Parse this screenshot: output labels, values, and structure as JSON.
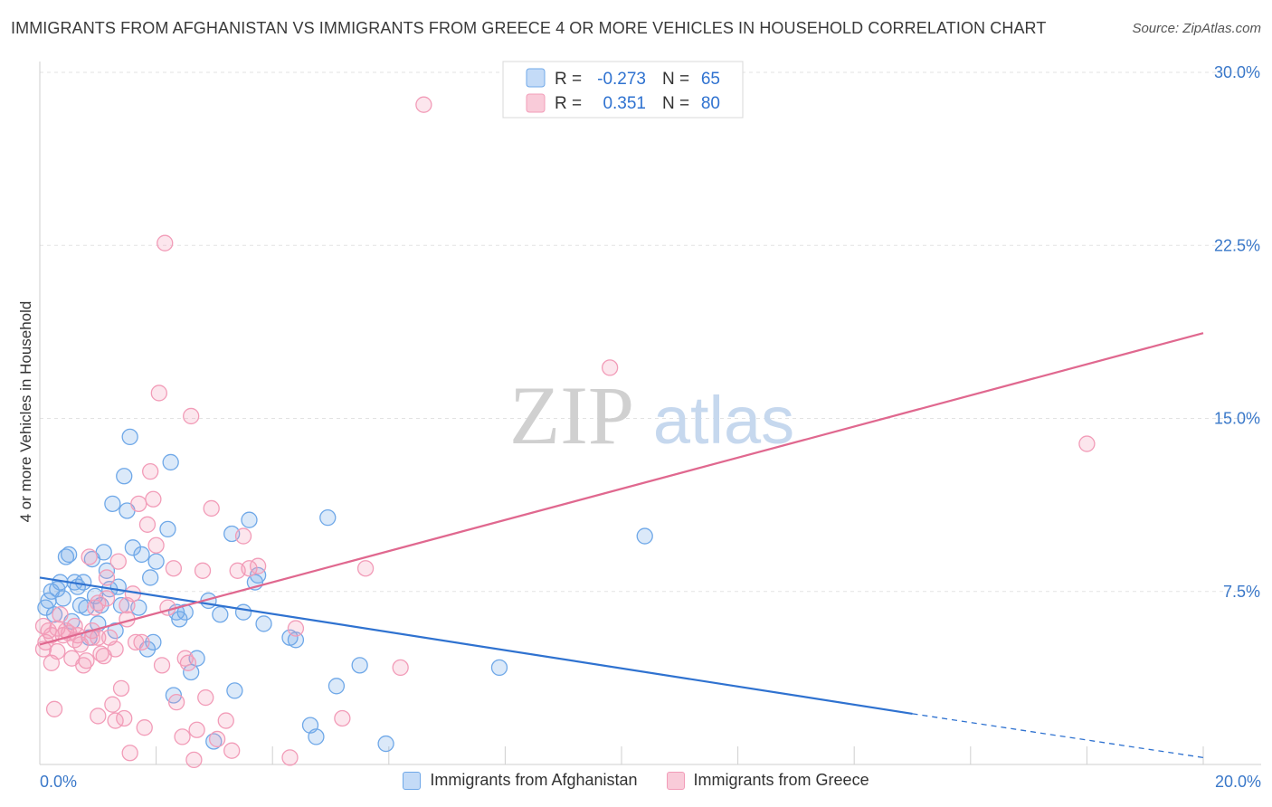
{
  "chart_data": {
    "type": "scatter",
    "title": "IMMIGRANTS FROM AFGHANISTAN VS IMMIGRANTS FROM GREECE 4 OR MORE VEHICLES IN HOUSEHOLD CORRELATION CHART",
    "source": "Source: ZipAtlas.com",
    "xlabel": "",
    "ylabel": "4 or more Vehicles in Household",
    "xlim": [
      0,
      20
    ],
    "ylim": [
      0,
      30
    ],
    "x_tick_labels": [
      "0.0%",
      "20.0%"
    ],
    "y_ticks": [
      7.5,
      15.0,
      22.5,
      30.0
    ],
    "y_tick_labels": [
      "7.5%",
      "15.0%",
      "22.5%",
      "30.0%"
    ],
    "grid": true,
    "watermark": "ZIPatlas",
    "legend_position": "top-center",
    "colors": {
      "afghanistan": "#6fa8e8",
      "greece": "#f29cb8",
      "afghanistan_line": "#2f72d0",
      "greece_line": "#e0688f",
      "axis_text": "#3a78c9"
    },
    "stats": [
      {
        "r_label": "R =",
        "r_value": "-0.273",
        "n_label": "N =",
        "n_value": "65"
      },
      {
        "r_label": "R =",
        "r_value": "0.351",
        "n_label": "N =",
        "n_value": "80"
      }
    ],
    "series": [
      {
        "name": "Immigrants from Afghanistan",
        "trend": {
          "x0": 0.0,
          "y0": 8.1,
          "x1": 15.0,
          "y1": 2.2,
          "dashed_to_x": 20.0,
          "dashed_to_y": 0.3
        },
        "points": [
          [
            0.1,
            6.8
          ],
          [
            0.15,
            7.1
          ],
          [
            0.2,
            7.5
          ],
          [
            0.25,
            6.5
          ],
          [
            0.3,
            7.6
          ],
          [
            0.35,
            7.9
          ],
          [
            0.4,
            7.2
          ],
          [
            0.45,
            9.0
          ],
          [
            0.5,
            9.1
          ],
          [
            0.55,
            6.2
          ],
          [
            0.6,
            7.9
          ],
          [
            0.65,
            7.7
          ],
          [
            0.7,
            6.9
          ],
          [
            0.75,
            7.9
          ],
          [
            0.8,
            6.8
          ],
          [
            0.85,
            5.5
          ],
          [
            0.9,
            8.9
          ],
          [
            0.95,
            7.3
          ],
          [
            1.0,
            6.1
          ],
          [
            1.05,
            6.9
          ],
          [
            1.1,
            9.2
          ],
          [
            1.15,
            8.4
          ],
          [
            1.2,
            7.6
          ],
          [
            1.25,
            11.3
          ],
          [
            1.3,
            5.8
          ],
          [
            1.35,
            7.7
          ],
          [
            1.4,
            6.9
          ],
          [
            1.45,
            12.5
          ],
          [
            1.5,
            11.0
          ],
          [
            1.55,
            14.2
          ],
          [
            1.6,
            9.4
          ],
          [
            1.7,
            6.8
          ],
          [
            1.75,
            9.1
          ],
          [
            1.85,
            5.0
          ],
          [
            1.9,
            8.1
          ],
          [
            1.95,
            5.3
          ],
          [
            2.0,
            8.8
          ],
          [
            2.2,
            10.2
          ],
          [
            2.25,
            13.1
          ],
          [
            2.3,
            3.0
          ],
          [
            2.35,
            6.6
          ],
          [
            2.4,
            6.3
          ],
          [
            2.5,
            6.6
          ],
          [
            2.6,
            4.0
          ],
          [
            2.7,
            4.6
          ],
          [
            2.9,
            7.1
          ],
          [
            3.1,
            6.5
          ],
          [
            3.3,
            10.0
          ],
          [
            3.35,
            3.2
          ],
          [
            3.5,
            6.6
          ],
          [
            3.6,
            10.6
          ],
          [
            3.7,
            7.9
          ],
          [
            3.75,
            8.2
          ],
          [
            3.85,
            6.1
          ],
          [
            4.3,
            5.5
          ],
          [
            4.4,
            5.4
          ],
          [
            4.65,
            1.7
          ],
          [
            4.75,
            1.2
          ],
          [
            4.95,
            10.7
          ],
          [
            5.1,
            3.4
          ],
          [
            5.5,
            4.3
          ],
          [
            5.95,
            0.9
          ],
          [
            7.9,
            4.2
          ],
          [
            10.4,
            9.9
          ],
          [
            2.99,
            1.0
          ]
        ]
      },
      {
        "name": "Immigrants from Greece",
        "trend": {
          "x0": 0.0,
          "y0": 5.2,
          "x1": 20.0,
          "y1": 18.7
        },
        "points": [
          [
            0.05,
            6.0
          ],
          [
            0.1,
            5.3
          ],
          [
            0.15,
            5.8
          ],
          [
            0.2,
            5.6
          ],
          [
            0.25,
            2.4
          ],
          [
            0.3,
            5.9
          ],
          [
            0.35,
            6.5
          ],
          [
            0.4,
            5.6
          ],
          [
            0.45,
            5.8
          ],
          [
            0.5,
            5.7
          ],
          [
            0.55,
            4.6
          ],
          [
            0.6,
            5.4
          ],
          [
            0.65,
            5.6
          ],
          [
            0.7,
            5.2
          ],
          [
            0.75,
            4.3
          ],
          [
            0.8,
            4.5
          ],
          [
            0.85,
            9.0
          ],
          [
            0.9,
            5.5
          ],
          [
            0.95,
            6.8
          ],
          [
            1.0,
            7.0
          ],
          [
            1.05,
            4.8
          ],
          [
            1.1,
            4.7
          ],
          [
            1.15,
            7.2
          ],
          [
            1.2,
            5.5
          ],
          [
            1.25,
            2.6
          ],
          [
            1.3,
            1.9
          ],
          [
            1.35,
            8.8
          ],
          [
            1.4,
            3.3
          ],
          [
            1.45,
            2.0
          ],
          [
            1.5,
            6.3
          ],
          [
            1.55,
            0.5
          ],
          [
            1.6,
            7.4
          ],
          [
            1.65,
            5.3
          ],
          [
            1.7,
            11.3
          ],
          [
            1.75,
            5.3
          ],
          [
            1.8,
            1.6
          ],
          [
            1.85,
            10.4
          ],
          [
            1.9,
            12.7
          ],
          [
            1.95,
            11.5
          ],
          [
            2.0,
            9.5
          ],
          [
            2.05,
            16.1
          ],
          [
            2.1,
            4.3
          ],
          [
            2.15,
            22.6
          ],
          [
            2.2,
            6.8
          ],
          [
            2.3,
            8.5
          ],
          [
            2.35,
            2.7
          ],
          [
            2.45,
            1.2
          ],
          [
            2.5,
            4.6
          ],
          [
            2.55,
            4.4
          ],
          [
            2.6,
            15.1
          ],
          [
            2.65,
            0.2
          ],
          [
            2.7,
            1.5
          ],
          [
            2.8,
            8.4
          ],
          [
            2.85,
            2.9
          ],
          [
            2.95,
            11.1
          ],
          [
            3.05,
            1.1
          ],
          [
            3.2,
            1.9
          ],
          [
            3.3,
            0.6
          ],
          [
            3.4,
            8.4
          ],
          [
            3.5,
            9.9
          ],
          [
            3.6,
            8.5
          ],
          [
            3.75,
            8.6
          ],
          [
            4.3,
            0.3
          ],
          [
            4.4,
            5.9
          ],
          [
            5.2,
            2.0
          ],
          [
            5.6,
            8.5
          ],
          [
            6.2,
            4.2
          ],
          [
            6.6,
            28.6
          ],
          [
            9.8,
            17.2
          ],
          [
            18.0,
            13.9
          ],
          [
            1.0,
            5.5
          ],
          [
            0.3,
            4.9
          ],
          [
            0.2,
            4.4
          ],
          [
            0.6,
            6.0
          ],
          [
            0.9,
            5.8
          ],
          [
            1.0,
            2.1
          ],
          [
            1.15,
            8.1
          ],
          [
            1.3,
            5.0
          ],
          [
            1.5,
            6.9
          ],
          [
            0.05,
            5.0
          ]
        ]
      }
    ]
  }
}
